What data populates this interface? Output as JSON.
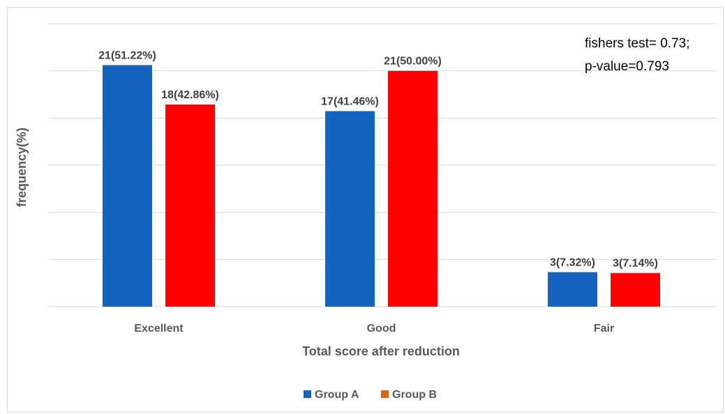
{
  "chart_data": {
    "type": "bar",
    "categories": [
      "Excellent",
      "Good",
      "Fair"
    ],
    "series": [
      {
        "name": "Group A",
        "values": [
          51.22,
          41.46,
          7.32
        ],
        "labels": [
          "21(51.22%)",
          "17(41.46%)",
          "3(7.32%)"
        ],
        "color": "#1565c0",
        "legend_color": "#1565c0"
      },
      {
        "name": "Group B",
        "values": [
          42.86,
          50.0,
          7.14
        ],
        "labels": [
          "18(42.86%)",
          "21(50.00%)",
          "3(7.14%)"
        ],
        "color": "#ff0000",
        "legend_color": "#d2691e"
      }
    ],
    "xlabel": "Total score after reduction",
    "ylabel": "frequency(%)",
    "ylim": [
      0,
      60
    ],
    "grid": true,
    "legend_position": "bottom",
    "annotation": [
      "fishers test= 0.73;",
      "p-value=0.793"
    ]
  }
}
